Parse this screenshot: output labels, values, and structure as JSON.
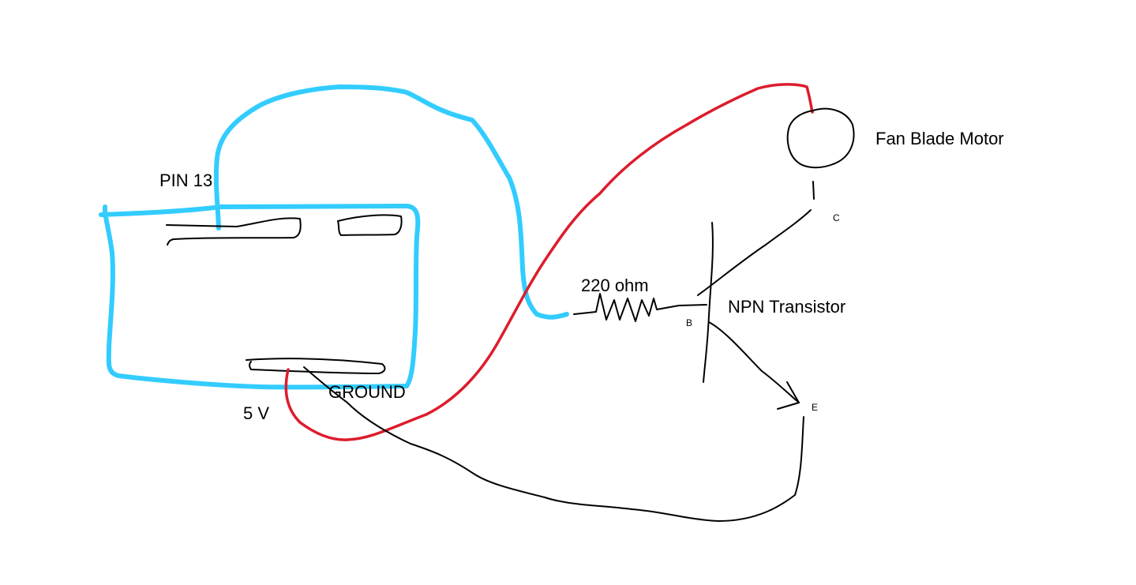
{
  "labels": {
    "pin13": "PIN 13",
    "five_v": "5 V",
    "ground": "GROUND",
    "resistor": "220 ohm",
    "transistor": "NPN Transistor",
    "motor": "Fan Blade Motor",
    "collector": "C",
    "base": "B",
    "emitter": "E"
  },
  "colors": {
    "signal_wire": "#33ccff",
    "power_wire": "#dd1c2c",
    "ink": "#000000"
  }
}
